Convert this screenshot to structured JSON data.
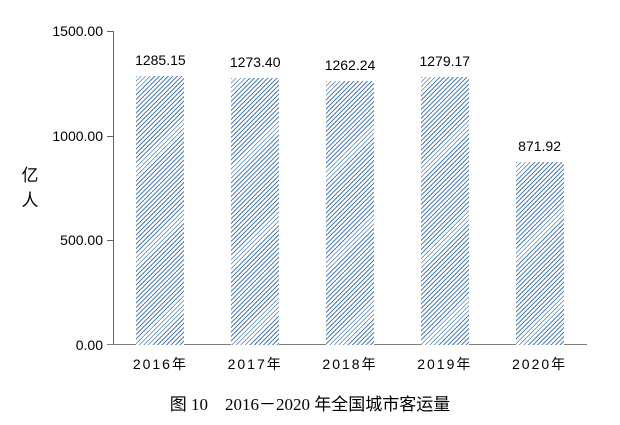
{
  "chart_data": {
    "type": "bar",
    "title": "图 10　2016－2020 年全国城市客运量",
    "ylabel": "亿人",
    "xlabel": "",
    "categories": [
      "2016年",
      "2017年",
      "2018年",
      "2019年",
      "2020年"
    ],
    "values": [
      1285.15,
      1273.4,
      1262.24,
      1279.17,
      871.92
    ],
    "data_labels": [
      "1285.15",
      "1273.40",
      "1262.24",
      "1279.17",
      "871.92"
    ],
    "y_ticks": [
      "1500.00",
      "1000.00",
      "500.00",
      "0.00"
    ],
    "ylim": [
      0,
      1500
    ],
    "grid": false,
    "legend": "none",
    "bar_fill": {
      "pattern": "diagonal-hatch",
      "color": "#4f81bd"
    },
    "axis_color": "#666666",
    "text_color": "#000000",
    "background": "#ffffff"
  }
}
